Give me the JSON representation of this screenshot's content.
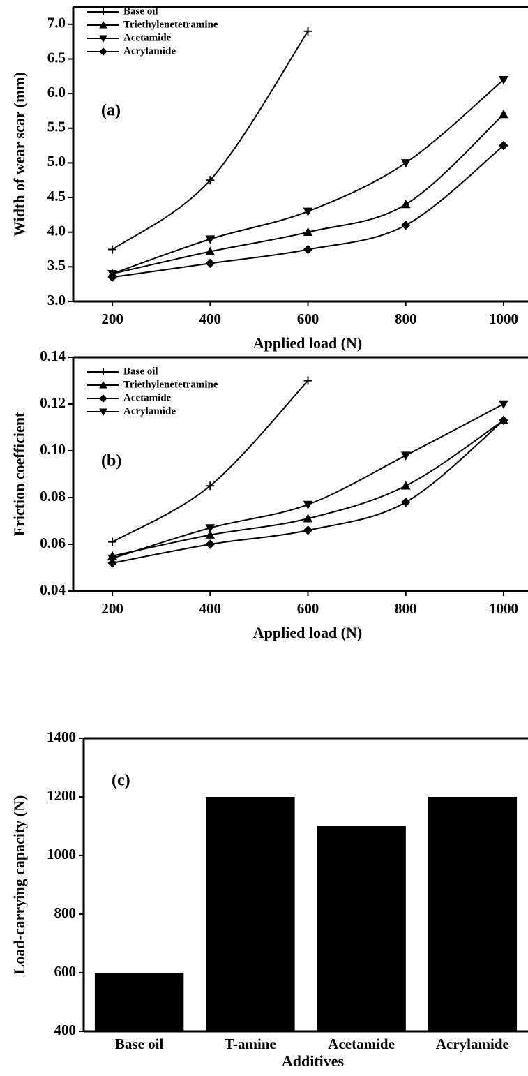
{
  "chart_data": [
    {
      "type": "line",
      "panel_label": "(a)",
      "ylabel": "Width of wear scar (mm)",
      "xlabel": "Applied load (N)",
      "x": [
        200,
        400,
        600,
        800,
        1000
      ],
      "xlim": [
        120,
        1050
      ],
      "xticks": [
        200,
        400,
        600,
        800,
        1000
      ],
      "ylim": [
        3.0,
        7.25
      ],
      "yticks": [
        {
          "value": 3,
          "label": "3.0"
        },
        3.5,
        {
          "value": 4,
          "label": "4.0"
        },
        4.5,
        {
          "value": 5,
          "label": "5.0"
        },
        5.5,
        {
          "value": 6,
          "label": "6.0"
        },
        6.5,
        {
          "value": 7,
          "label": "7.0"
        }
      ],
      "series": [
        {
          "name": "Base oil",
          "color": "#000000",
          "marker": "plus",
          "values": [
            3.75,
            4.75,
            6.9,
            null,
            null
          ]
        },
        {
          "name": "Triethylenetetramine",
          "color": "#000000",
          "marker": "triangle-up",
          "values": [
            3.4,
            3.72,
            4.0,
            4.4,
            5.7
          ]
        },
        {
          "name": "Acetamide",
          "color": "#000000",
          "marker": "triangle-down",
          "values": [
            3.4,
            3.9,
            4.3,
            5.0,
            6.2
          ]
        },
        {
          "name": "Acrylamide",
          "color": "#000000",
          "marker": "diamond",
          "values": [
            3.35,
            3.55,
            3.75,
            4.1,
            5.25
          ]
        }
      ]
    },
    {
      "type": "line",
      "panel_label": "(b)",
      "ylabel": "Friction coefficient",
      "xlabel": "Applied load (N)",
      "x": [
        200,
        400,
        600,
        800,
        1000
      ],
      "xlim": [
        120,
        1050
      ],
      "xticks": [
        200,
        400,
        600,
        800,
        1000
      ],
      "ylim": [
        0.04,
        0.14
      ],
      "yticks": [
        0.04,
        0.06,
        0.08,
        {
          "value": 0.1,
          "label": "0.10"
        },
        0.12,
        0.14
      ],
      "series": [
        {
          "name": "Base oil",
          "color": "#000000",
          "marker": "plus",
          "values": [
            0.061,
            0.085,
            0.13,
            null,
            null
          ]
        },
        {
          "name": "Triethylenetetramine",
          "color": "#000000",
          "marker": "triangle-up",
          "values": [
            0.055,
            0.064,
            0.071,
            0.085,
            0.113
          ]
        },
        {
          "name": "Acetamide",
          "color": "#000000",
          "marker": "diamond",
          "values": [
            0.052,
            0.06,
            0.066,
            0.078,
            0.113
          ]
        },
        {
          "name": "Acrylamide",
          "color": "#000000",
          "marker": "triangle-down",
          "values": [
            0.054,
            0.067,
            0.077,
            0.098,
            0.12
          ]
        }
      ]
    },
    {
      "type": "bar",
      "panel_label": "(c)",
      "ylabel": "Load-carrying capacity (N)",
      "xlabel": "Additives",
      "categories": [
        "Base oil",
        "T-amine",
        "Acetamide",
        "Acrylamide"
      ],
      "values": [
        600,
        1200,
        1100,
        1200
      ],
      "color": "#000000",
      "ylim": [
        400,
        1400
      ],
      "yticks": [
        400,
        600,
        800,
        1000,
        1200,
        1400
      ]
    }
  ]
}
